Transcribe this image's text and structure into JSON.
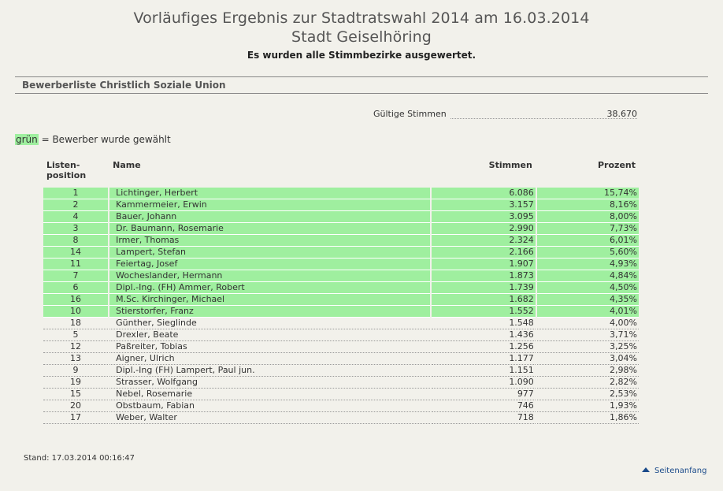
{
  "header": {
    "title_line1": "Vorläufiges Ergebnis zur Stadtratswahl 2014 am 16.03.2014",
    "title_line2": "Stadt Geiselhöring",
    "subtitle": "Es wurden alle Stimmbezirke ausgewertet."
  },
  "section_title": "Bewerberliste Christlich Soziale Union",
  "valid_votes": {
    "label": "Gültige Stimmen",
    "value": "38.670"
  },
  "legend": {
    "green_word": "grün",
    "text": " = Bewerber wurde gewählt",
    "color": "#9fef9f"
  },
  "table": {
    "headers": {
      "position_l1": "Listen-",
      "position_l2": "position",
      "name": "Name",
      "votes": "Stimmen",
      "percent": "Prozent"
    },
    "rows": [
      {
        "pos": "1",
        "name": "Lichtinger, Herbert",
        "votes": "6.086",
        "pct": "15,74%",
        "elected": true
      },
      {
        "pos": "2",
        "name": "Kammermeier, Erwin",
        "votes": "3.157",
        "pct": "8,16%",
        "elected": true
      },
      {
        "pos": "4",
        "name": "Bauer, Johann",
        "votes": "3.095",
        "pct": "8,00%",
        "elected": true
      },
      {
        "pos": "3",
        "name": "Dr. Baumann, Rosemarie",
        "votes": "2.990",
        "pct": "7,73%",
        "elected": true
      },
      {
        "pos": "8",
        "name": "Irmer, Thomas",
        "votes": "2.324",
        "pct": "6,01%",
        "elected": true
      },
      {
        "pos": "14",
        "name": "Lampert, Stefan",
        "votes": "2.166",
        "pct": "5,60%",
        "elected": true
      },
      {
        "pos": "11",
        "name": "Feiertag, Josef",
        "votes": "1.907",
        "pct": "4,93%",
        "elected": true
      },
      {
        "pos": "7",
        "name": "Wocheslander, Hermann",
        "votes": "1.873",
        "pct": "4,84%",
        "elected": true
      },
      {
        "pos": "6",
        "name": "Dipl.-Ing. (FH) Ammer, Robert",
        "votes": "1.739",
        "pct": "4,50%",
        "elected": true
      },
      {
        "pos": "16",
        "name": "M.Sc. Kirchinger, Michael",
        "votes": "1.682",
        "pct": "4,35%",
        "elected": true
      },
      {
        "pos": "10",
        "name": "Stierstorfer, Franz",
        "votes": "1.552",
        "pct": "4,01%",
        "elected": true
      },
      {
        "pos": "18",
        "name": "Günther, Sieglinde",
        "votes": "1.548",
        "pct": "4,00%",
        "elected": false
      },
      {
        "pos": "5",
        "name": "Drexler, Beate",
        "votes": "1.436",
        "pct": "3,71%",
        "elected": false
      },
      {
        "pos": "12",
        "name": "Paßreiter, Tobias",
        "votes": "1.256",
        "pct": "3,25%",
        "elected": false
      },
      {
        "pos": "13",
        "name": "Aigner, Ulrich",
        "votes": "1.177",
        "pct": "3,04%",
        "elected": false
      },
      {
        "pos": "9",
        "name": "Dipl.-Ing (FH) Lampert, Paul jun.",
        "votes": "1.151",
        "pct": "2,98%",
        "elected": false
      },
      {
        "pos": "19",
        "name": "Strasser, Wolfgang",
        "votes": "1.090",
        "pct": "2,82%",
        "elected": false
      },
      {
        "pos": "15",
        "name": "Nebel, Rosemarie",
        "votes": "977",
        "pct": "2,53%",
        "elected": false
      },
      {
        "pos": "20",
        "name": "Obstbaum, Fabian",
        "votes": "746",
        "pct": "1,93%",
        "elected": false
      },
      {
        "pos": "17",
        "name": "Weber, Walter",
        "votes": "718",
        "pct": "1,86%",
        "elected": false
      }
    ]
  },
  "footer": {
    "stand": "Stand: 17.03.2014 00:16:47",
    "top_link": "Seitenanfang",
    "top_link_icon": "arrow-up-icon"
  }
}
